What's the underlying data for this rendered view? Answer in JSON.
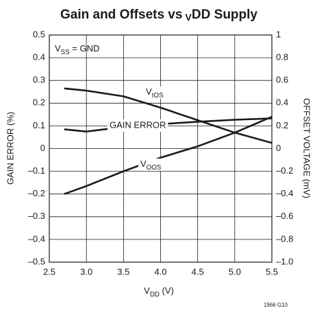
{
  "chart_data": {
    "type": "line",
    "title": "Gain and Offsets vs VDD Supply",
    "x_label": "VDD (V)",
    "y_label": "GAIN ERROR (%)",
    "y2_label": "OFFSET VOLTAGE (mV)",
    "annotation": "VSS = GND",
    "footnote": "1966 G10",
    "x": [
      2.7,
      3.0,
      3.5,
      4.0,
      4.5,
      5.0,
      5.5
    ],
    "series": [
      {
        "name": "GAIN ERROR",
        "color": "#1a1a1a",
        "values": [
          0.085,
          0.075,
          0.095,
          0.108,
          0.118,
          0.127,
          0.133
        ]
      },
      {
        "name": "VIOS",
        "color": "#1a1a1a",
        "axis": "y2",
        "values": [
          0.53,
          0.51,
          0.46,
          0.36,
          0.25,
          0.14,
          0.05
        ]
      },
      {
        "name": "VOOS",
        "color": "#1a1a1a",
        "axis": "y2",
        "values": [
          -0.4,
          -0.33,
          -0.2,
          -0.08,
          0.02,
          0.14,
          0.28
        ]
      }
    ],
    "xlim": [
      2.5,
      5.5
    ],
    "xticks": [
      2.5,
      {
        "value": 3.0,
        "label": "3.0"
      },
      3.5,
      {
        "value": 4.0,
        "label": "4.0"
      },
      4.5,
      {
        "value": 5.0,
        "label": "5.0"
      },
      5.5
    ],
    "ylim": [
      -0.5,
      0.5
    ],
    "yticks": [
      {
        "value": -0.5,
        "label": "–0.5"
      },
      {
        "value": -0.4,
        "label": "–0.4"
      },
      {
        "value": -0.3,
        "label": "–0.3"
      },
      {
        "value": -0.2,
        "label": "–0.2"
      },
      {
        "value": -0.1,
        "label": "–0.1"
      },
      0,
      0.1,
      0.2,
      0.3,
      0.4,
      0.5
    ],
    "y2lim": [
      -1.0,
      1
    ],
    "y2ticks": [
      {
        "value": -1.0,
        "label": "–1.0"
      },
      {
        "value": -0.8,
        "label": "–0.8"
      },
      {
        "value": -0.6,
        "label": "–0.6"
      },
      {
        "value": -0.4,
        "label": "–0.4"
      },
      {
        "value": -0.2,
        "label": "–0.2"
      },
      0,
      0.2,
      0.4,
      0.6,
      0.8,
      1
    ],
    "grid": true
  }
}
